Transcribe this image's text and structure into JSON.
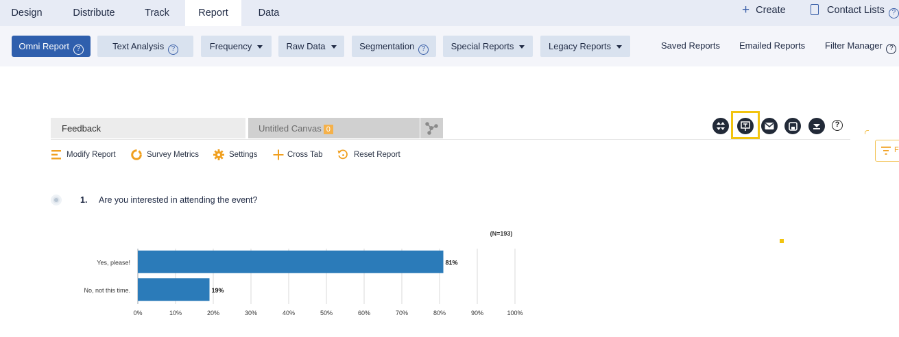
{
  "topnav": {
    "tabs": [
      {
        "label": "Design",
        "active": false
      },
      {
        "label": "Distribute",
        "active": false
      },
      {
        "label": "Track",
        "active": false
      },
      {
        "label": "Report",
        "active": true
      },
      {
        "label": "Data",
        "active": false
      }
    ],
    "create_label": "Create",
    "contact_lists_label": "Contact Lists",
    "help_glyph": "?"
  },
  "subnav": {
    "omni_report": "Omni Report",
    "text_analysis": "Text Analysis",
    "frequency": "Frequency",
    "raw_data": "Raw Data",
    "segmentation": "Segmentation",
    "special_reports": "Special Reports",
    "legacy_reports": "Legacy Reports",
    "saved_reports": "Saved Reports",
    "emailed_reports": "Emailed Reports",
    "filter_manager": "Filter Manager",
    "help_glyph": "?"
  },
  "canvas_tabs": {
    "feedback": "Feedback",
    "untitled": "Untitled Canvas",
    "untitled_badge": "0"
  },
  "icons": {
    "expand": "expand-icon",
    "present": "presentation-icon",
    "email": "email-icon",
    "save": "save-icon",
    "download": "download-icon",
    "help": "help-icon"
  },
  "toolbar": {
    "modify_report": "Modify Report",
    "survey_metrics": "Survey Metrics",
    "settings": "Settings",
    "cross_tab": "Cross Tab",
    "reset_report": "Reset Report"
  },
  "question": {
    "number": "1.",
    "text": "Are you interested in attending the event?"
  },
  "colors": {
    "accent": "#2f5fad",
    "bar": "#2b7bb9",
    "highlight": "#f2c40f",
    "tool_orange": "#f0a020"
  },
  "chart_data": {
    "type": "bar",
    "orientation": "horizontal",
    "n_label": "(N=193)",
    "categories": [
      "Yes, please!",
      "No, not this time."
    ],
    "values": [
      81,
      19
    ],
    "value_labels": [
      "81%",
      "19%"
    ],
    "xlim": [
      0,
      100
    ],
    "xticks": [
      "0%",
      "10%",
      "20%",
      "30%",
      "40%",
      "50%",
      "60%",
      "70%",
      "80%",
      "90%",
      "100%"
    ],
    "grid": true
  }
}
